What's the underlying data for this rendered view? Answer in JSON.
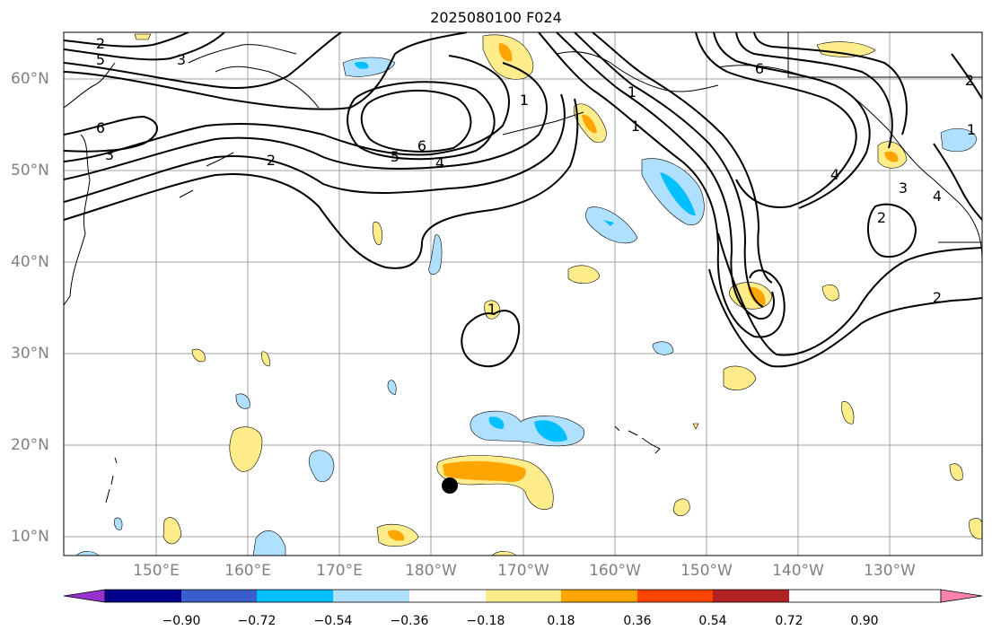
{
  "title": "2025080100 F024",
  "lat_labels": [
    "60°N",
    "50°N",
    "40°N",
    "30°N",
    "20°N",
    "10°N"
  ],
  "lon_labels": [
    "150°E",
    "160°E",
    "170°E",
    "180°W",
    "170°W",
    "160°W",
    "150°W",
    "140°W",
    "130°W"
  ],
  "colorbar": {
    "ticks": [
      "−0.90",
      "−0.72",
      "−0.54",
      "−0.36",
      "−0.18",
      "0.18",
      "0.36",
      "0.54",
      "0.72",
      "0.90"
    ],
    "colors": [
      "#9932cc",
      "#00008b",
      "#3a5fcd",
      "#00bfff",
      "#b0e0ff",
      "#ffffff",
      "#ffec8b",
      "#ffa500",
      "#ff4500",
      "#b22222",
      "#ff82ab"
    ]
  },
  "contour_labels": [
    "2",
    "5",
    "3",
    "6",
    "3",
    "2",
    "1",
    "5",
    "6",
    "4",
    "1",
    "1",
    "6",
    "4",
    "2",
    "2",
    "3",
    "2",
    "1",
    "4",
    "1"
  ],
  "marker": "storm-center"
}
